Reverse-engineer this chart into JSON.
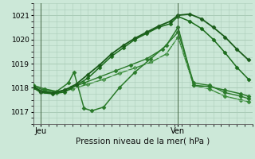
{
  "bg_color": "#cce8d8",
  "grid_color": "#aaccb8",
  "title": "Pression niveau de la mer( hPa )",
  "ylabel_ticks": [
    1017,
    1018,
    1019,
    1020,
    1021
  ],
  "xlim": [
    0,
    28
  ],
  "ylim": [
    1016.55,
    1021.45
  ],
  "jeu_x": 1.0,
  "ven_x": 18.5,
  "series": [
    {
      "x": [
        0.0,
        1.0,
        2.5,
        4.0,
        5.5,
        7.0,
        8.5,
        10.0,
        11.5,
        13.0,
        14.5,
        16.0,
        17.5,
        18.5,
        20.0,
        21.5,
        23.0,
        24.5,
        26.0,
        27.5
      ],
      "y": [
        1018.05,
        1017.85,
        1017.78,
        1017.9,
        1018.15,
        1018.55,
        1018.95,
        1019.4,
        1019.75,
        1020.05,
        1020.3,
        1020.55,
        1020.75,
        1021.0,
        1021.05,
        1020.85,
        1020.5,
        1020.1,
        1019.6,
        1019.15
      ],
      "color": "#1a5c1a",
      "marker": "D",
      "markersize": 2.5,
      "lw": 1.3,
      "zorder": 5
    },
    {
      "x": [
        0.0,
        1.0,
        2.5,
        4.0,
        5.5,
        7.0,
        8.5,
        10.0,
        11.5,
        13.0,
        14.5,
        16.0,
        17.5,
        18.5,
        20.0,
        21.5,
        23.0,
        24.5,
        26.0,
        27.5
      ],
      "y": [
        1018.0,
        1017.8,
        1017.75,
        1017.82,
        1018.1,
        1018.4,
        1018.85,
        1019.3,
        1019.65,
        1020.0,
        1020.25,
        1020.5,
        1020.65,
        1020.95,
        1020.75,
        1020.45,
        1020.0,
        1019.45,
        1018.85,
        1018.35
      ],
      "color": "#1a6b1a",
      "marker": "D",
      "markersize": 2.5,
      "lw": 1.1,
      "zorder": 4
    },
    {
      "x": [
        0.0,
        1.5,
        3.0,
        4.5,
        5.2,
        6.5,
        7.5,
        9.0,
        11.0,
        13.0,
        15.0,
        17.0,
        18.5,
        20.5,
        22.5,
        24.5,
        26.5,
        27.5
      ],
      "y": [
        1018.1,
        1017.95,
        1017.85,
        1018.2,
        1018.65,
        1017.15,
        1017.05,
        1017.2,
        1018.0,
        1018.65,
        1019.2,
        1019.75,
        1020.5,
        1018.1,
        1018.05,
        1017.9,
        1017.75,
        1017.65
      ],
      "color": "#2a7a2a",
      "marker": "D",
      "markersize": 2.5,
      "lw": 1.1,
      "zorder": 3
    },
    {
      "x": [
        0.0,
        1.5,
        3.0,
        4.8,
        6.5,
        8.5,
        10.5,
        12.5,
        14.5,
        16.5,
        18.5,
        20.5,
        22.5,
        24.5,
        26.5,
        27.5
      ],
      "y": [
        1018.05,
        1017.9,
        1017.82,
        1018.0,
        1018.2,
        1018.45,
        1018.7,
        1018.95,
        1019.2,
        1019.6,
        1020.3,
        1018.2,
        1018.1,
        1017.8,
        1017.65,
        1017.55
      ],
      "color": "#2a7a2a",
      "marker": "D",
      "markersize": 2.5,
      "lw": 1.0,
      "zorder": 2
    },
    {
      "x": [
        0.0,
        1.5,
        3.0,
        5.0,
        7.0,
        9.0,
        11.0,
        13.0,
        15.0,
        17.0,
        18.5,
        20.5,
        22.5,
        24.5,
        26.5,
        27.5
      ],
      "y": [
        1018.0,
        1017.85,
        1017.78,
        1017.95,
        1018.15,
        1018.35,
        1018.6,
        1018.82,
        1019.05,
        1019.4,
        1020.1,
        1018.1,
        1017.95,
        1017.65,
        1017.5,
        1017.42
      ],
      "color": "#3a8c3a",
      "marker": "D",
      "markersize": 2.5,
      "lw": 1.0,
      "zorder": 1
    }
  ]
}
